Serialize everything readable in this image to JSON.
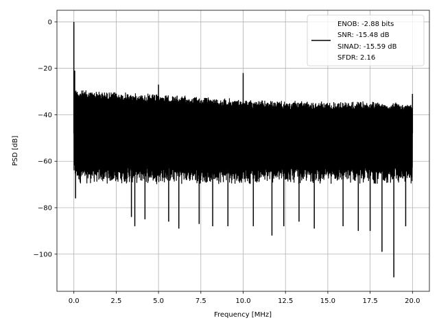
{
  "chart_data": {
    "type": "line",
    "title": "",
    "xlabel": "Frequency [MHz]",
    "ylabel": "PSD [dB]",
    "xlim": [
      -1.0,
      21.0
    ],
    "ylim": [
      -116,
      5
    ],
    "xticks": [
      0.0,
      2.5,
      5.0,
      7.5,
      10.0,
      12.5,
      15.0,
      17.5,
      20.0
    ],
    "xtick_labels": [
      "0.0",
      "2.5",
      "5.0",
      "7.5",
      "10.0",
      "12.5",
      "15.0",
      "17.5",
      "20.0"
    ],
    "yticks": [
      0,
      -20,
      -40,
      -60,
      -80,
      -100
    ],
    "ytick_labels": [
      "0",
      "−20",
      "−40",
      "−60",
      "−80",
      "−100"
    ],
    "grid": true,
    "legend_position": "top-right",
    "series": [
      {
        "color": "#000000",
        "legend_lines": [
          "ENOB: -2.88 bits",
          "SNR: -15.48 dB",
          "SINAD: -15.59 dB",
          "SFDR: 2.16"
        ],
        "noise_envelope": {
          "x": [
            0.0,
            0.3,
            2.5,
            5.0,
            7.5,
            10.0,
            12.5,
            15.0,
            17.5,
            20.0
          ],
          "upper": [
            -28,
            -29,
            -30,
            -31,
            -32,
            -33,
            -34,
            -34,
            -34,
            -35
          ],
          "lower": [
            -68,
            -70,
            -70,
            -70,
            -70,
            -70,
            -70,
            -70,
            -70,
            -70
          ]
        },
        "spurs": [
          {
            "x": 0.0,
            "y": 0
          },
          {
            "x": 0.05,
            "y": -21
          },
          {
            "x": 5.0,
            "y": -27
          },
          {
            "x": 10.0,
            "y": -22
          },
          {
            "x": 20.0,
            "y": -31
          }
        ],
        "dips": [
          {
            "x": 0.1,
            "y": -76
          },
          {
            "x": 3.4,
            "y": -84
          },
          {
            "x": 3.6,
            "y": -88
          },
          {
            "x": 4.2,
            "y": -85
          },
          {
            "x": 5.6,
            "y": -86
          },
          {
            "x": 6.2,
            "y": -89
          },
          {
            "x": 7.4,
            "y": -87
          },
          {
            "x": 8.2,
            "y": -88
          },
          {
            "x": 9.1,
            "y": -88
          },
          {
            "x": 10.6,
            "y": -88
          },
          {
            "x": 11.7,
            "y": -92
          },
          {
            "x": 12.4,
            "y": -88
          },
          {
            "x": 13.3,
            "y": -86
          },
          {
            "x": 14.2,
            "y": -89
          },
          {
            "x": 15.9,
            "y": -88
          },
          {
            "x": 16.8,
            "y": -90
          },
          {
            "x": 17.5,
            "y": -90
          },
          {
            "x": 18.2,
            "y": -99
          },
          {
            "x": 18.9,
            "y": -110
          },
          {
            "x": 19.6,
            "y": -88
          }
        ]
      }
    ]
  }
}
